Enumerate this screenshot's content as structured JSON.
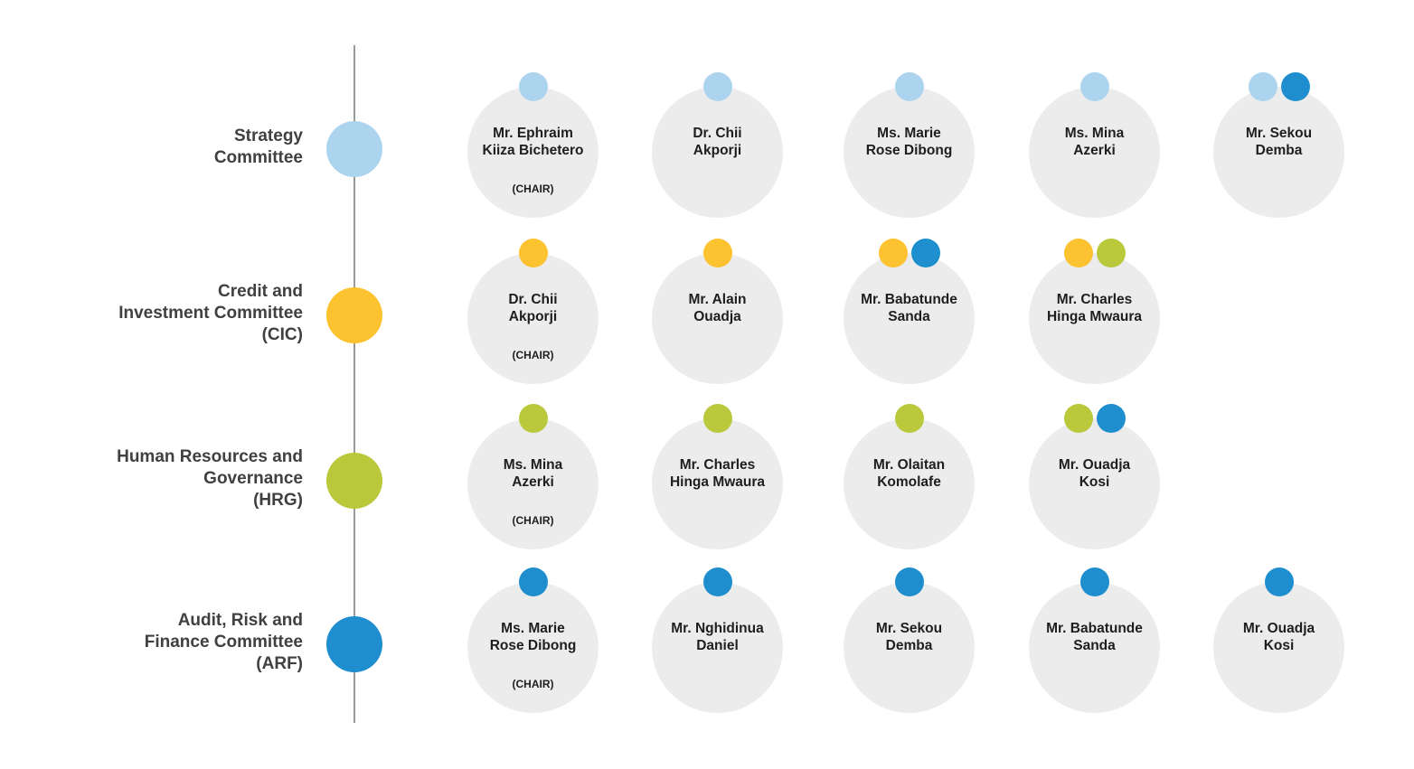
{
  "colors": {
    "strategy": "#acd4ee",
    "cic": "#fcc22f",
    "hrg": "#bac83c",
    "arf": "#1e8ecf",
    "member_bg": "#ececec",
    "timeline": "#9a9a9a"
  },
  "committees": [
    {
      "key": "strategy",
      "label_lines": [
        "Strategy",
        "Committee"
      ],
      "members": [
        {
          "name_lines": [
            "Mr. Ephraim",
            "Kiiza Bichetero"
          ],
          "chair": "(CHAIR)",
          "tags": [
            "strategy"
          ]
        },
        {
          "name_lines": [
            "Dr. Chii",
            "Akporji"
          ],
          "tags": [
            "strategy"
          ]
        },
        {
          "name_lines": [
            "Ms. Marie",
            "Rose Dibong"
          ],
          "tags": [
            "strategy"
          ]
        },
        {
          "name_lines": [
            "Ms. Mina",
            "Azerki"
          ],
          "tags": [
            "strategy"
          ]
        },
        {
          "name_lines": [
            "Mr. Sekou",
            "Demba"
          ],
          "tags": [
            "strategy",
            "arf"
          ]
        }
      ]
    },
    {
      "key": "cic",
      "label_lines": [
        "Credit and",
        "Investment Committee",
        "(CIC)"
      ],
      "members": [
        {
          "name_lines": [
            "Dr. Chii",
            "Akporji"
          ],
          "chair": "(CHAIR)",
          "tags": [
            "cic"
          ]
        },
        {
          "name_lines": [
            "Mr. Alain",
            "Ouadja"
          ],
          "tags": [
            "cic"
          ]
        },
        {
          "name_lines": [
            "Mr. Babatunde",
            "Sanda"
          ],
          "tags": [
            "cic",
            "arf"
          ]
        },
        {
          "name_lines": [
            "Mr. Charles",
            "Hinga Mwaura"
          ],
          "tags": [
            "cic",
            "hrg"
          ]
        }
      ]
    },
    {
      "key": "hrg",
      "label_lines": [
        "Human Resources and",
        "Governance",
        "(HRG)"
      ],
      "members": [
        {
          "name_lines": [
            "Ms. Mina",
            "Azerki"
          ],
          "chair": "(CHAIR)",
          "tags": [
            "hrg"
          ]
        },
        {
          "name_lines": [
            "Mr. Charles",
            "Hinga Mwaura"
          ],
          "tags": [
            "hrg"
          ]
        },
        {
          "name_lines": [
            "Mr. Olaitan",
            "Komolafe"
          ],
          "tags": [
            "hrg"
          ]
        },
        {
          "name_lines": [
            "Mr. Ouadja",
            "Kosi"
          ],
          "tags": [
            "hrg",
            "arf"
          ]
        }
      ]
    },
    {
      "key": "arf",
      "label_lines": [
        "Audit, Risk and",
        "Finance Committee",
        "(ARF)"
      ],
      "members": [
        {
          "name_lines": [
            "Ms. Marie",
            "Rose Dibong"
          ],
          "chair": "(CHAIR)",
          "tags": [
            "arf"
          ]
        },
        {
          "name_lines": [
            "Mr. Nghidinua",
            "Daniel"
          ],
          "tags": [
            "arf"
          ]
        },
        {
          "name_lines": [
            "Mr. Sekou",
            "Demba"
          ],
          "tags": [
            "arf"
          ]
        },
        {
          "name_lines": [
            "Mr. Babatunde",
            "Sanda"
          ],
          "tags": [
            "arf"
          ]
        },
        {
          "name_lines": [
            "Mr. Ouadja",
            "Kosi"
          ],
          "tags": [
            "arf"
          ]
        }
      ]
    }
  ]
}
